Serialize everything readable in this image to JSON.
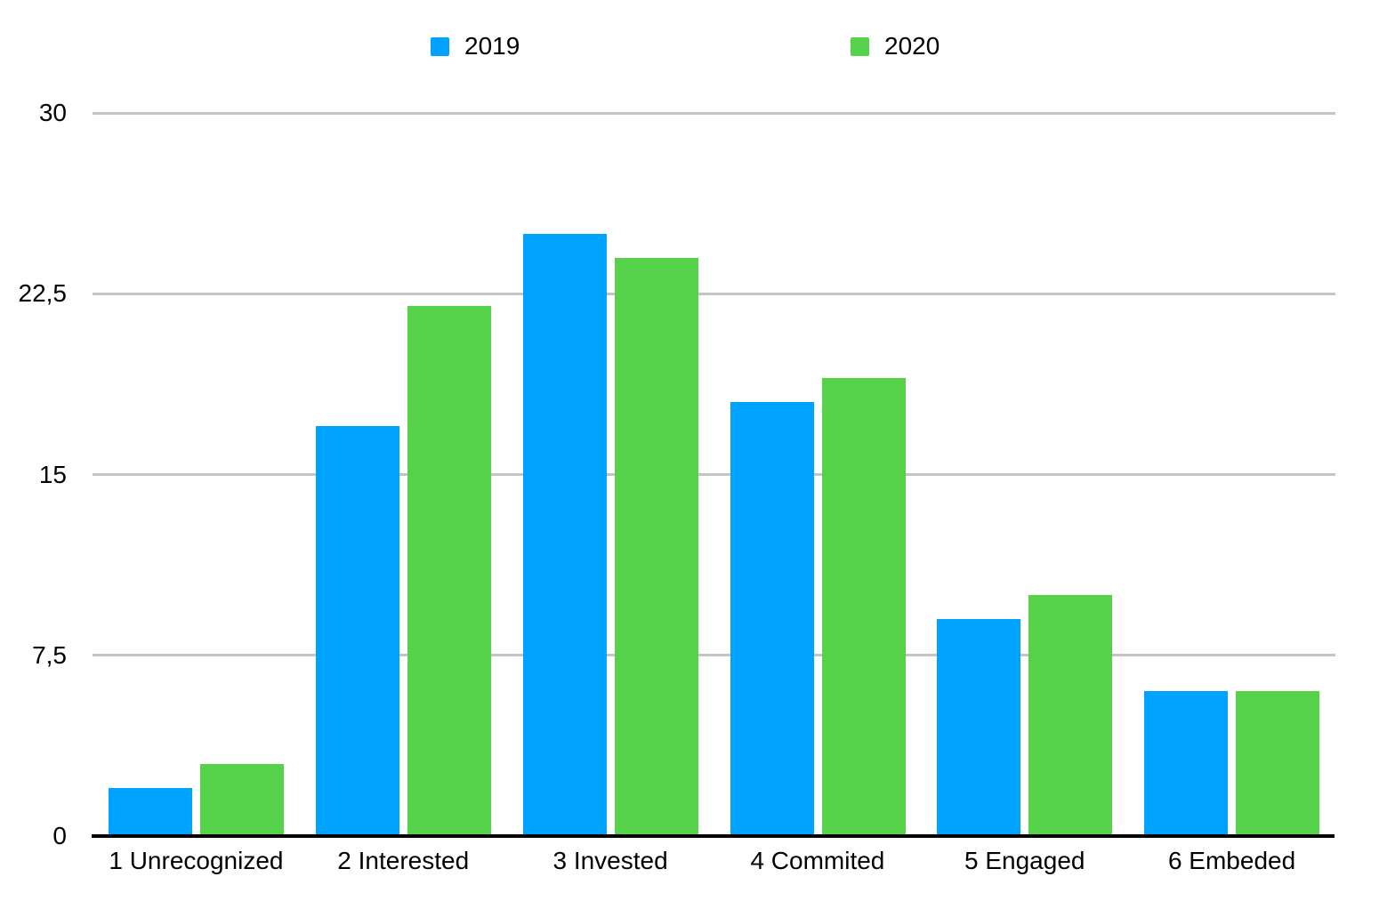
{
  "legend": [
    {
      "label": "2019",
      "color": "#00A2FF"
    },
    {
      "label": "2020",
      "color": "#55D24A"
    }
  ],
  "chart_data": {
    "type": "bar",
    "title": "",
    "xlabel": "",
    "ylabel": "",
    "categories": [
      "1 Unrecognized",
      "2 Interested",
      "3 Invested",
      "4 Commited",
      "5 Engaged",
      "6 Embeded"
    ],
    "series": [
      {
        "name": "2019",
        "color": "#00A2FF",
        "values": [
          2,
          17,
          25,
          18,
          9,
          6
        ]
      },
      {
        "name": "2020",
        "color": "#55D24A",
        "values": [
          3,
          22,
          24,
          19,
          10,
          6
        ]
      }
    ],
    "ylim": [
      0,
      30
    ],
    "yticks": [
      0,
      7.5,
      15,
      22.5,
      30
    ],
    "ytick_labels": [
      "0",
      "7,5",
      "15",
      "22,5",
      "30"
    ],
    "grid": true,
    "gridline_color": "#C4C4C4",
    "axis_color": "#000000",
    "legend_position": "top"
  }
}
